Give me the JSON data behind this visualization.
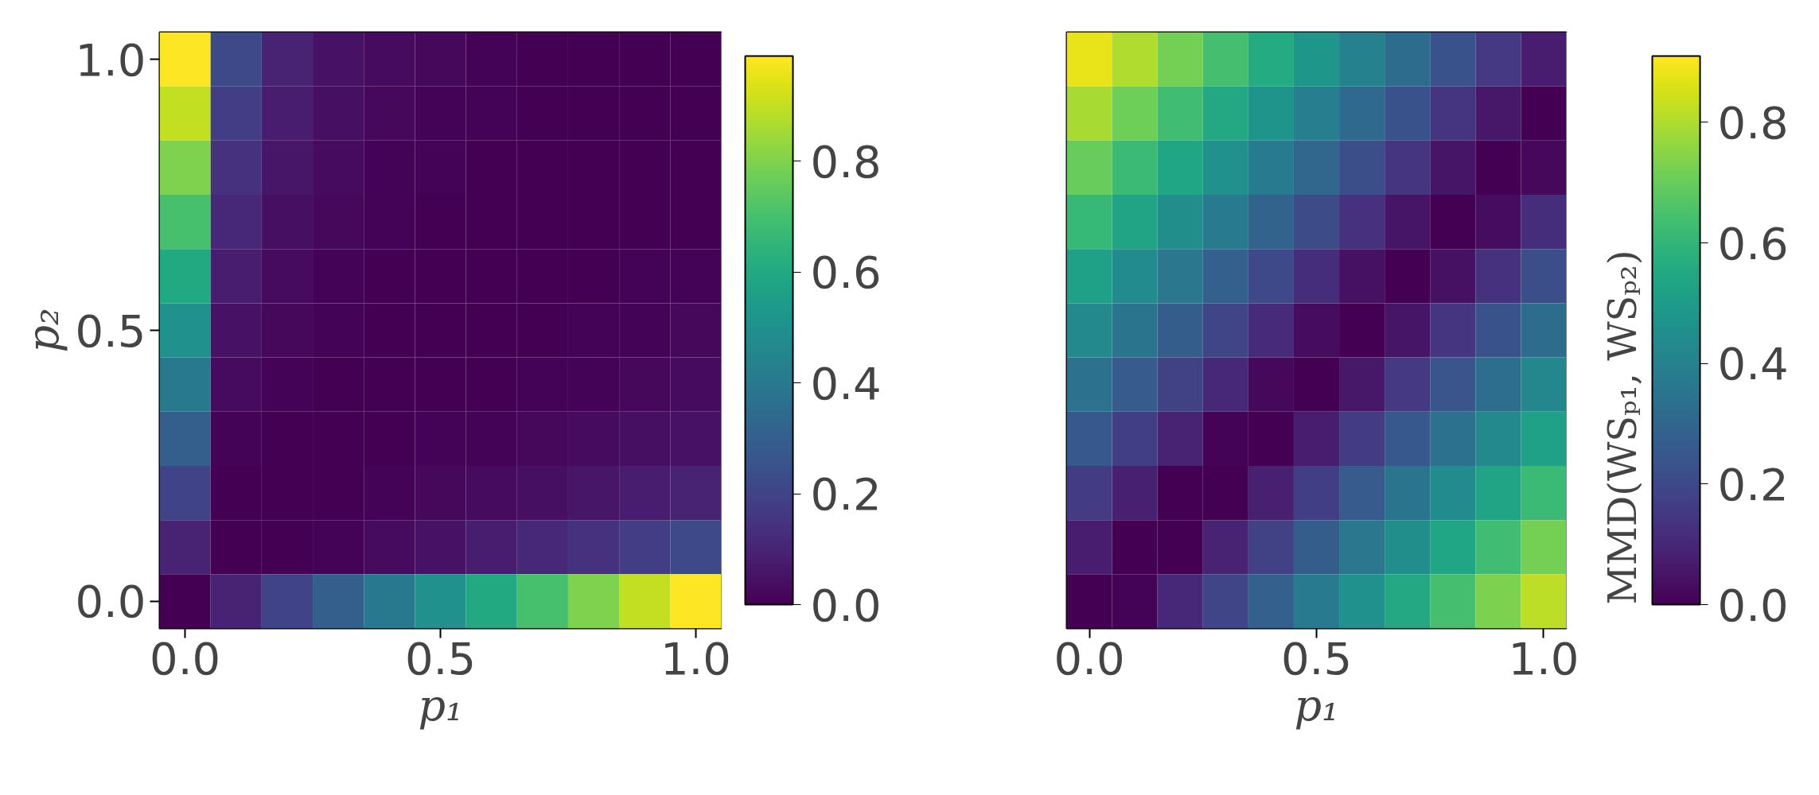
{
  "chart_data": [
    {
      "type": "heatmap",
      "xlabel": "p₁",
      "ylabel": "p₂",
      "grid": false,
      "categories": [
        "0.0",
        null,
        null,
        null,
        null,
        "0.5",
        null,
        null,
        null,
        null,
        "1.0"
      ],
      "y_categories": [
        "1.0",
        null,
        null,
        null,
        null,
        "0.5",
        null,
        null,
        null,
        null,
        "0.0"
      ],
      "clim": [
        0,
        0.99
      ],
      "cticks": [
        {
          "value": 0,
          "label": "0.0"
        },
        {
          "value": 0.2,
          "label": "0.2"
        },
        {
          "value": 0.4,
          "label": "0.4"
        },
        {
          "value": 0.6,
          "label": "0.6"
        },
        {
          "value": 0.8,
          "label": "0.8"
        }
      ],
      "cells": [
        [
          1.0,
          0.22,
          0.1,
          0.05,
          0.03,
          0.02,
          0.01,
          0,
          0,
          0,
          0
        ],
        [
          0.9,
          0.18,
          0.08,
          0.04,
          0.02,
          0.01,
          0.01,
          0,
          0,
          0,
          0
        ],
        [
          0.8,
          0.14,
          0.06,
          0.03,
          0.01,
          0.01,
          0,
          0,
          0,
          0,
          0
        ],
        [
          0.7,
          0.11,
          0.04,
          0.02,
          0.01,
          0,
          0,
          0,
          0,
          0,
          0
        ],
        [
          0.6,
          0.08,
          0.03,
          0.01,
          0,
          0,
          0,
          0,
          0,
          0.01,
          0.01
        ],
        [
          0.5,
          0.05,
          0.02,
          0.01,
          0,
          0,
          0,
          0,
          0.01,
          0.01,
          0.02
        ],
        [
          0.4,
          0.03,
          0.01,
          0,
          0,
          0,
          0,
          0.01,
          0.01,
          0.02,
          0.03
        ],
        [
          0.3,
          0.01,
          0,
          0,
          0,
          0.01,
          0.01,
          0.02,
          0.03,
          0.04,
          0.05
        ],
        [
          0.2,
          0,
          0,
          0,
          0.01,
          0.02,
          0.03,
          0.04,
          0.06,
          0.08,
          0.1
        ],
        [
          0.1,
          0,
          0,
          0.01,
          0.03,
          0.05,
          0.08,
          0.11,
          0.14,
          0.18,
          0.22
        ],
        [
          0,
          0.1,
          0.2,
          0.3,
          0.4,
          0.5,
          0.6,
          0.7,
          0.8,
          0.9,
          1.0
        ]
      ]
    },
    {
      "type": "heatmap",
      "xlabel": "p₁",
      "clabel": "MMD(WSₚ₁, WSₚ₂)",
      "grid": false,
      "categories": [
        "0.0",
        null,
        null,
        null,
        null,
        "0.5",
        null,
        null,
        null,
        null,
        "1.0"
      ],
      "y_categories": [
        null,
        null,
        null,
        null,
        null,
        null,
        null,
        null,
        null,
        null,
        null
      ],
      "clim": [
        0,
        0.91
      ],
      "cticks": [
        {
          "value": 0,
          "label": "0.0"
        },
        {
          "value": 0.2,
          "label": "0.2"
        },
        {
          "value": 0.4,
          "label": "0.4"
        },
        {
          "value": 0.6,
          "label": "0.6"
        },
        {
          "value": 0.8,
          "label": "0.8"
        }
      ],
      "cells": [
        [
          0.88,
          0.8,
          0.72,
          0.64,
          0.56,
          0.48,
          0.4,
          0.32,
          0.23,
          0.15,
          0.07
        ],
        [
          0.79,
          0.71,
          0.63,
          0.55,
          0.47,
          0.39,
          0.31,
          0.23,
          0.14,
          0.06,
          0
        ],
        [
          0.7,
          0.62,
          0.54,
          0.46,
          0.38,
          0.3,
          0.22,
          0.14,
          0.05,
          0,
          0.02
        ],
        [
          0.61,
          0.53,
          0.45,
          0.37,
          0.29,
          0.21,
          0.13,
          0.05,
          0,
          0.03,
          0.12
        ],
        [
          0.52,
          0.44,
          0.36,
          0.28,
          0.2,
          0.12,
          0.04,
          0,
          0.04,
          0.13,
          0.22
        ],
        [
          0.43,
          0.35,
          0.27,
          0.19,
          0.11,
          0.03,
          0,
          0.05,
          0.14,
          0.23,
          0.32
        ],
        [
          0.34,
          0.26,
          0.18,
          0.1,
          0.02,
          0,
          0.06,
          0.15,
          0.24,
          0.33,
          0.42
        ],
        [
          0.25,
          0.17,
          0.09,
          0.01,
          0,
          0.07,
          0.16,
          0.25,
          0.34,
          0.43,
          0.52
        ],
        [
          0.16,
          0.08,
          0,
          0,
          0.08,
          0.17,
          0.26,
          0.35,
          0.44,
          0.53,
          0.62
        ],
        [
          0.07,
          0,
          0,
          0.09,
          0.18,
          0.27,
          0.36,
          0.45,
          0.54,
          0.63,
          0.72
        ],
        [
          0,
          0.01,
          0.1,
          0.19,
          0.28,
          0.37,
          0.46,
          0.55,
          0.64,
          0.73,
          0.82
        ]
      ]
    }
  ]
}
